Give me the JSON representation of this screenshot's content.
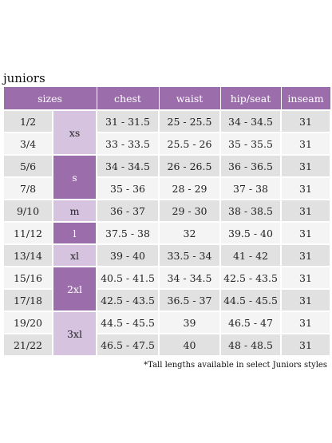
{
  "title": "juniors",
  "headers": [
    "sizes",
    "chest",
    "waist",
    "hip/seat",
    "inseam"
  ],
  "rows": [
    {
      "numeric": "1/2",
      "chest": "31 - 31.5",
      "waist": "25 - 25.5",
      "hip": "34 - 34.5",
      "inseam": "31"
    },
    {
      "numeric": "3/4",
      "chest": "33 - 33.5",
      "waist": "25.5 - 26",
      "hip": "35 - 35.5",
      "inseam": "31"
    },
    {
      "numeric": "5/6",
      "chest": "34 - 34.5",
      "waist": "26 - 26.5",
      "hip": "36 - 36.5",
      "inseam": "31"
    },
    {
      "numeric": "7/8",
      "chest": "35 - 36",
      "waist": "28 - 29",
      "hip": "37 - 38",
      "inseam": "31"
    },
    {
      "numeric": "9/10",
      "chest": "36 - 37",
      "waist": "29 - 30",
      "hip": "38 - 38.5",
      "inseam": "31"
    },
    {
      "numeric": "11/12",
      "chest": "37.5 - 38",
      "waist": "32",
      "hip": "39.5 - 40",
      "inseam": "31"
    },
    {
      "numeric": "13/14",
      "chest": "39 - 40",
      "waist": "33.5 - 34",
      "hip": "41 - 42",
      "inseam": "31"
    },
    {
      "numeric": "15/16",
      "chest": "40.5 - 41.5",
      "waist": "34 - 34.5",
      "hip": "42.5 - 43.5",
      "inseam": "31"
    },
    {
      "numeric": "17/18",
      "chest": "42.5 - 43.5",
      "waist": "36.5 - 37",
      "hip": "44.5 - 45.5",
      "inseam": "31"
    },
    {
      "numeric": "19/20",
      "chest": "44.5 - 45.5",
      "waist": "39",
      "hip": "46.5 - 47",
      "inseam": "31"
    },
    {
      "numeric": "21/22",
      "chest": "46.5 - 47.5",
      "waist": "40",
      "hip": "48 - 48.5",
      "inseam": "31"
    }
  ],
  "letter_sizes": [
    "xs",
    "s",
    "m",
    "l",
    "xl",
    "2xl",
    "3xl"
  ],
  "footnote": "*Tall lengths available in select Juniors styles",
  "colors": {
    "header_purple": "#9b6dab",
    "lavender": "#d5c3e0",
    "row_light": "#f4f4f4",
    "row_dark": "#e1e1e1"
  }
}
